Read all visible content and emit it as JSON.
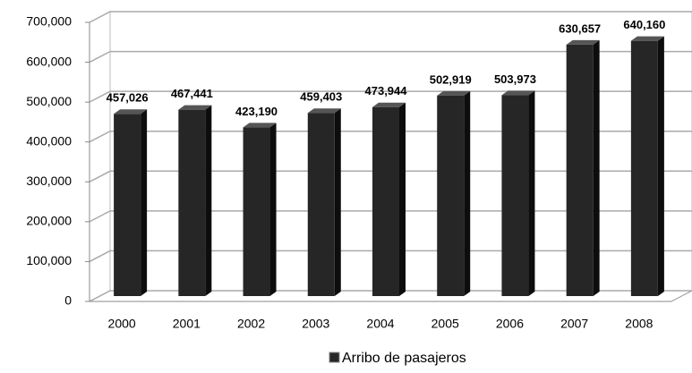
{
  "chart_data": {
    "type": "bar3d",
    "categories": [
      "2000",
      "2001",
      "2002",
      "2003",
      "2004",
      "2005",
      "2006",
      "2007",
      "2008"
    ],
    "series": [
      {
        "name": "Arribo de pasajeros",
        "color": "#262626",
        "values": [
          457026,
          467441,
          423190,
          459403,
          473944,
          502919,
          503973,
          630657,
          640160
        ],
        "value_labels": [
          "457,026",
          "467,441",
          "423,190",
          "459,403",
          "473,944",
          "502,919",
          "503,973",
          "630,657",
          "640,160"
        ]
      }
    ],
    "ylim": [
      0,
      700000
    ],
    "yticks": [
      0,
      {
        "value": 100000,
        "label": "100,000"
      },
      {
        "value": 200000,
        "label": "200,000"
      },
      {
        "value": 300000,
        "label": "300,000"
      },
      {
        "value": 400000,
        "label": "400,000"
      },
      {
        "value": 500000,
        "label": "500,000"
      },
      {
        "value": 600000,
        "label": "600,000"
      },
      {
        "value": 700000,
        "label": "700,000"
      }
    ],
    "grid": true,
    "legend": "bottom"
  }
}
